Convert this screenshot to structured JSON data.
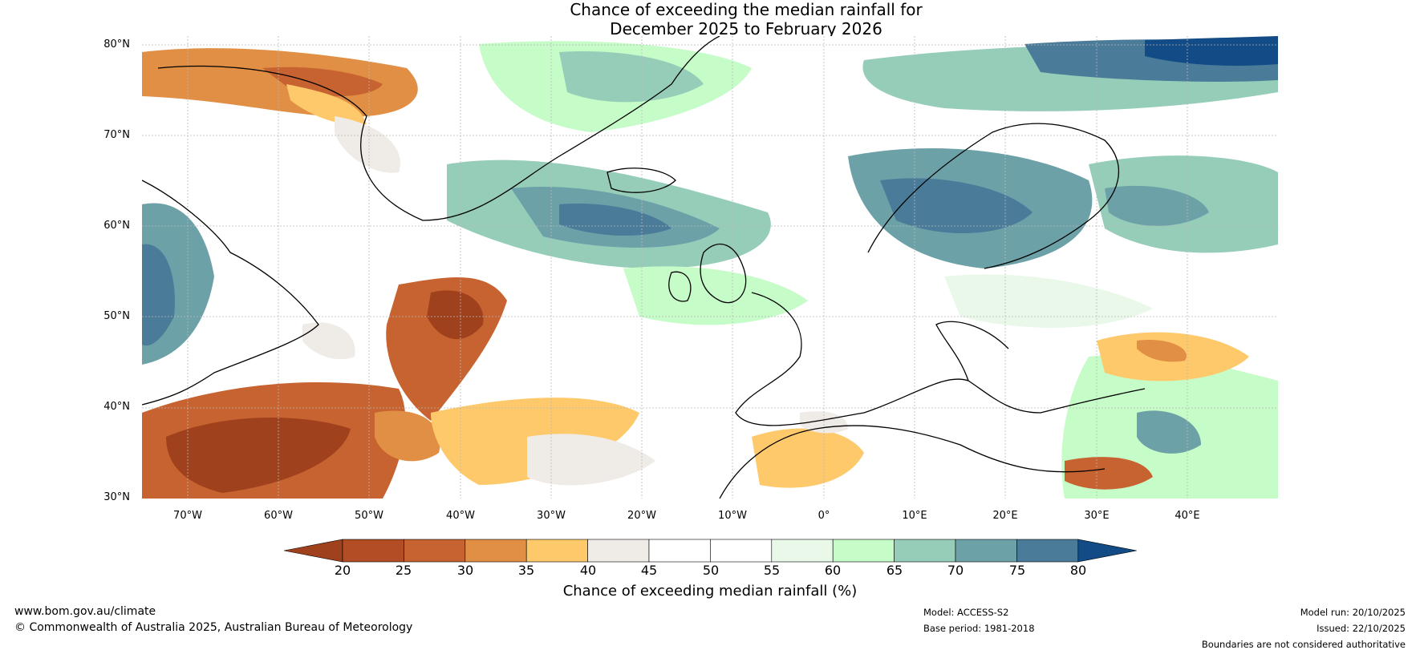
{
  "title_line1": "Chance of exceeding the median rainfall for",
  "title_line2": "December 2025 to February 2026",
  "map": {
    "lat_labels": [
      {
        "label": "80°N",
        "lat": 80
      },
      {
        "label": "70°N",
        "lat": 70
      },
      {
        "label": "60°N",
        "lat": 60
      },
      {
        "label": "50°N",
        "lat": 50
      },
      {
        "label": "40°N",
        "lat": 40
      },
      {
        "label": "30°N",
        "lat": 30
      }
    ],
    "lon_labels": [
      {
        "label": "70°W",
        "lon": -70
      },
      {
        "label": "60°W",
        "lon": -60
      },
      {
        "label": "50°W",
        "lon": -50
      },
      {
        "label": "40°W",
        "lon": -40
      },
      {
        "label": "30°W",
        "lon": -30
      },
      {
        "label": "20°W",
        "lon": -20
      },
      {
        "label": "10°W",
        "lon": -10
      },
      {
        "label": "0°",
        "lon": 0
      },
      {
        "label": "10°E",
        "lon": 10
      },
      {
        "label": "20°E",
        "lon": 20
      },
      {
        "label": "30°E",
        "lon": 30
      },
      {
        "label": "40°E",
        "lon": 40
      }
    ],
    "extent": {
      "lon_min": -75,
      "lon_max": 50,
      "lat_min": 30,
      "lat_max": 81
    }
  },
  "colorbar": {
    "ticks": [
      "20",
      "25",
      "30",
      "35",
      "40",
      "45",
      "50",
      "55",
      "60",
      "65",
      "70",
      "75",
      "80"
    ],
    "colors": [
      "#a0411e",
      "#b24d26",
      "#c76330",
      "#e08f45",
      "#fec96a",
      "#efebe6",
      "#ffffff",
      "#ffffff",
      "#e9f8e9",
      "#c6fcc8",
      "#96cdb9",
      "#6da1a8",
      "#4a7c9a",
      "#124b85"
    ],
    "label": "Chance of exceeding median rainfall (%)"
  },
  "footer": {
    "website": "www.bom.gov.au/climate",
    "copyright": "© Commonwealth of Australia 2025, Australian Bureau of Meteorology",
    "model": "Model: ACCESS-S2",
    "base_period": "Base period: 1981-2018",
    "model_run": "Model run: 20/10/2025",
    "issued": "Issued: 22/10/2025",
    "disclaimer": "Boundaries are not considered authoritative"
  }
}
